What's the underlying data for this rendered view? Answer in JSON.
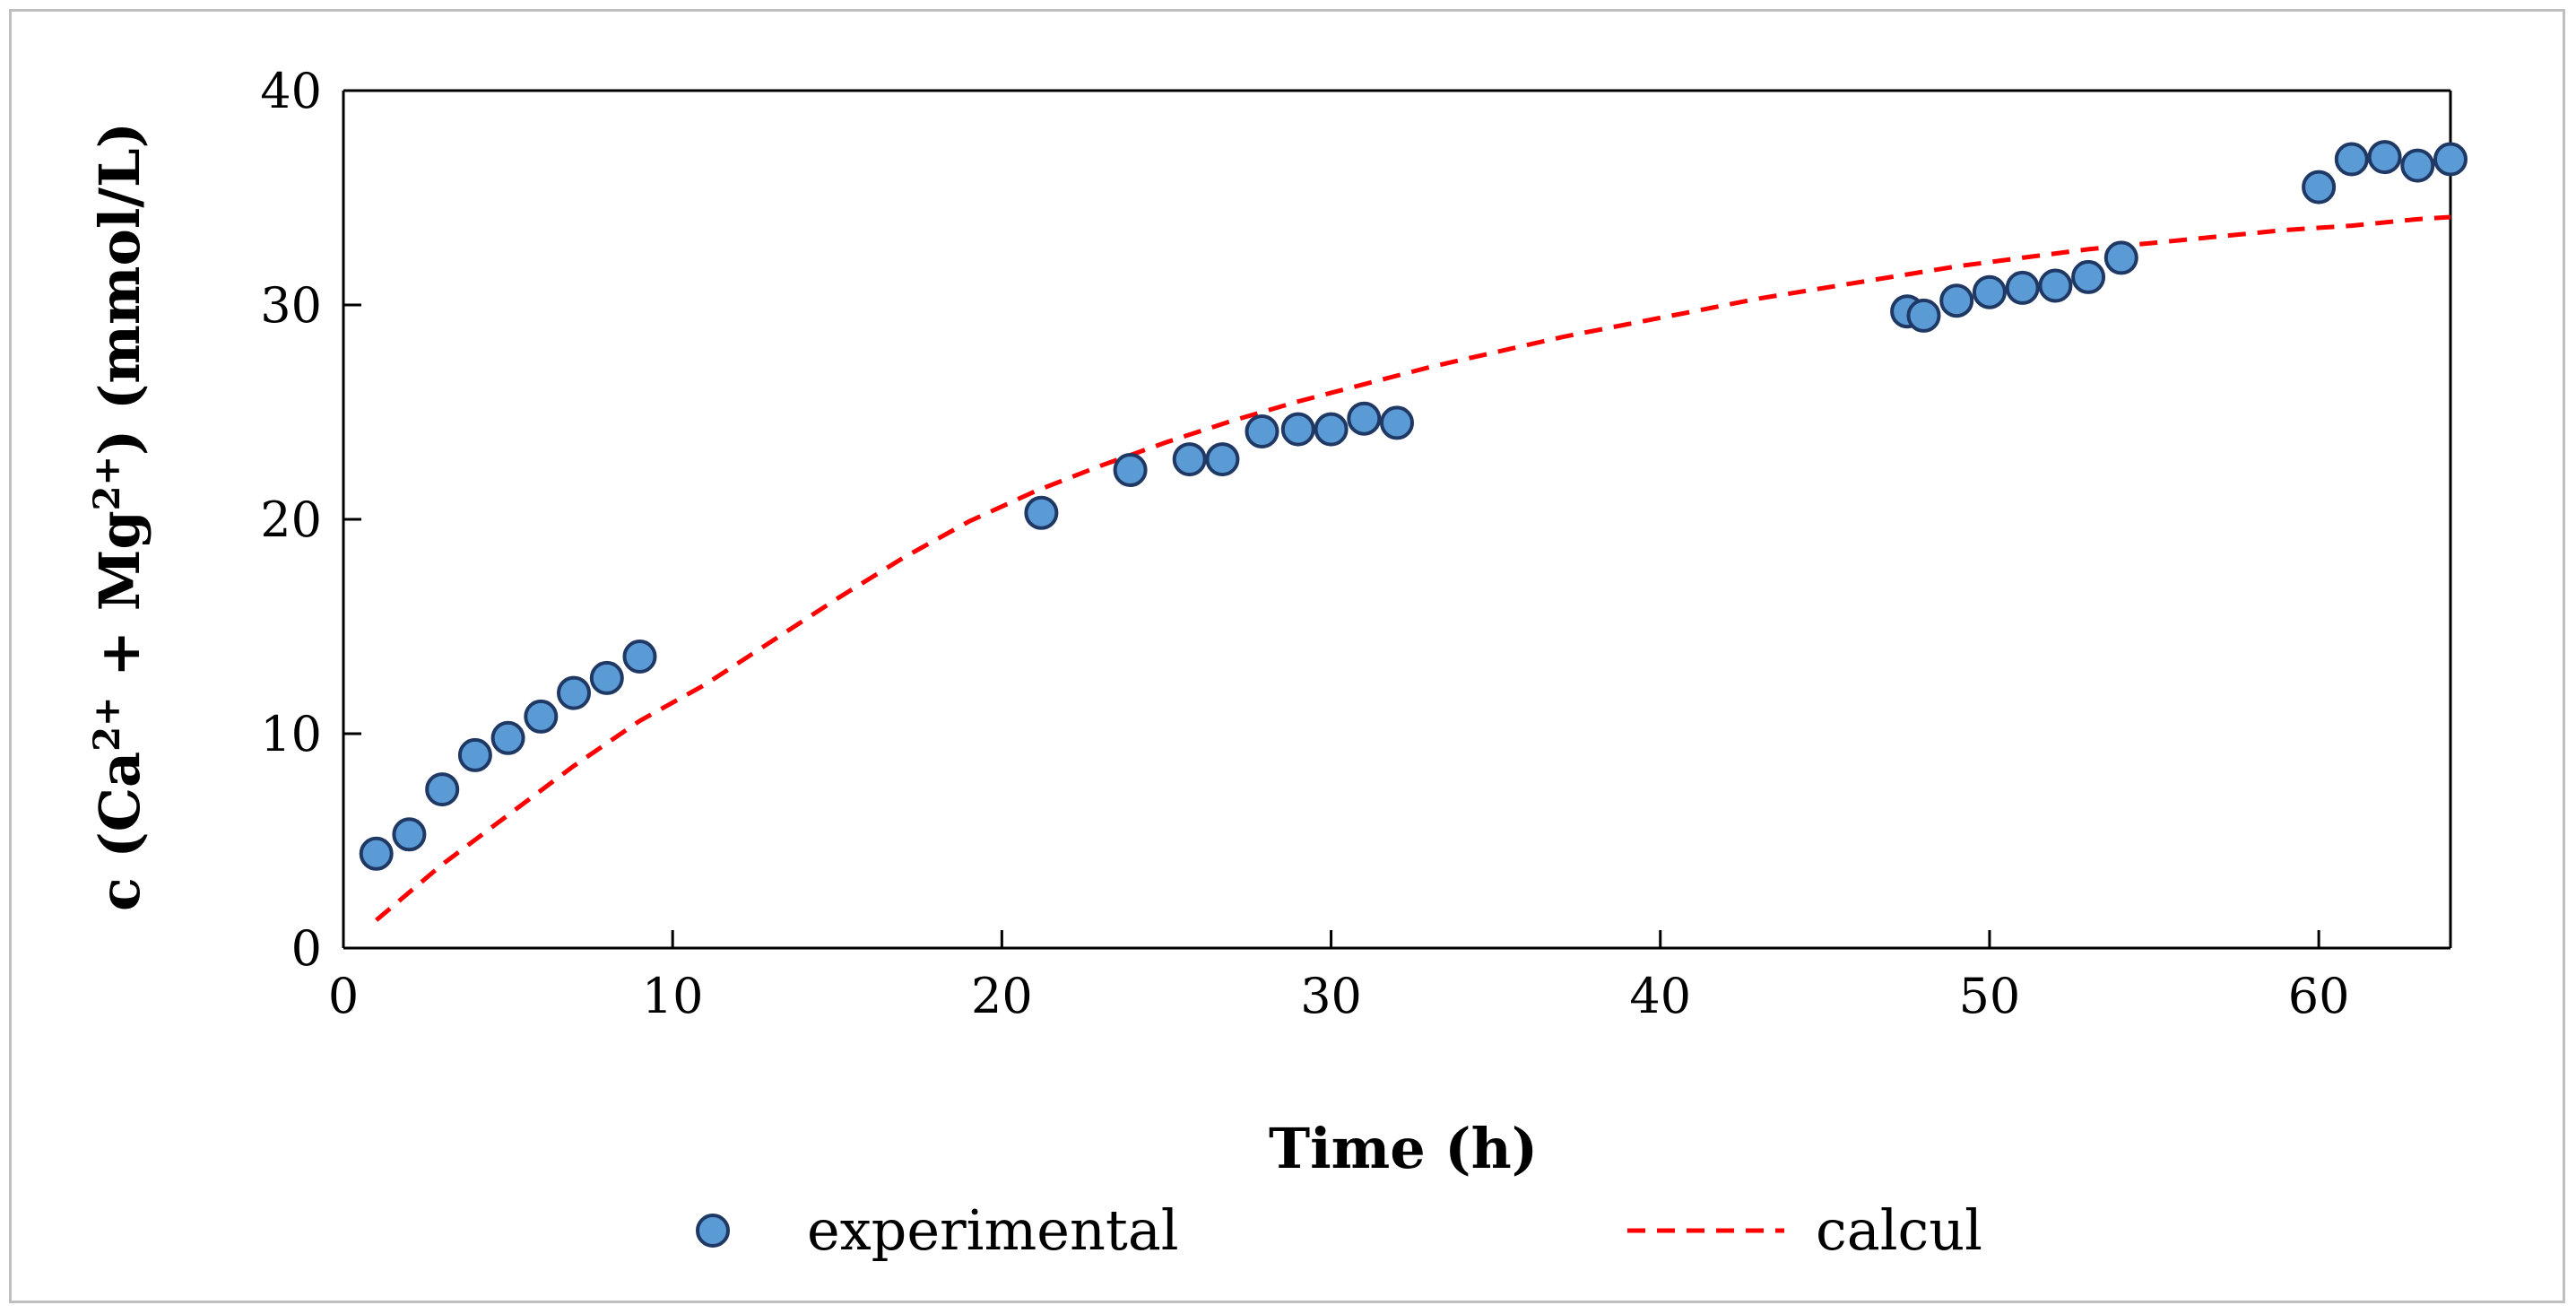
{
  "chart_data": {
    "type": "scatter",
    "title": "",
    "xlabel": "Time (h)",
    "ylabel_parts": {
      "prefix": "c (Ca",
      "sup1": "2+",
      "middle": " + Mg",
      "sup2": "2+",
      "suffix": ") (mmol/L)"
    },
    "xlim": [
      0,
      64
    ],
    "ylim": [
      0,
      40
    ],
    "xticks": [
      0,
      10,
      20,
      30,
      40,
      50,
      60
    ],
    "yticks": [
      0,
      10,
      20,
      30,
      40
    ],
    "xtick_labels": [
      "0",
      "10",
      "20",
      "30",
      "40",
      "50",
      "60"
    ],
    "ytick_labels": [
      "0",
      "10",
      "20",
      "30",
      "40"
    ],
    "grid": false,
    "legend_position": "bottom",
    "series": [
      {
        "name": "experimental",
        "kind": "scatter",
        "marker_fill": "#5b9bd5",
        "marker_edge": "#1f3864",
        "x": [
          1,
          2,
          3,
          4,
          5,
          6,
          7,
          8,
          9,
          21.2,
          23.9,
          25.7,
          26.7,
          27.9,
          29,
          30,
          31,
          32,
          47.5,
          48,
          49,
          50,
          51,
          52,
          53,
          54,
          60,
          61,
          62,
          63,
          64
        ],
        "y": [
          4.4,
          5.3,
          7.4,
          9,
          9.8,
          10.8,
          11.9,
          12.6,
          13.6,
          20.3,
          22.3,
          22.8,
          22.8,
          24.1,
          24.2,
          24.2,
          24.7,
          24.5,
          29.7,
          29.5,
          30.2,
          30.6,
          30.8,
          30.9,
          31.3,
          32.2,
          35.5,
          36.8,
          36.9,
          36.5,
          36.8
        ]
      },
      {
        "name": "calcul",
        "kind": "line",
        "style": "dashed",
        "color": "#ff0000",
        "x": [
          1,
          3,
          5,
          7,
          9,
          11,
          13,
          15,
          17,
          19,
          21,
          23,
          25,
          27,
          29,
          31,
          33,
          35,
          37,
          39,
          41,
          43,
          45,
          47,
          49,
          51,
          53,
          55,
          57,
          59,
          61,
          63,
          64
        ],
        "y": [
          1.3,
          3.9,
          6.2,
          8.5,
          10.6,
          12.3,
          14.3,
          16.3,
          18.2,
          19.9,
          21.3,
          22.5,
          23.6,
          24.6,
          25.5,
          26.3,
          27.1,
          27.8,
          28.5,
          29.1,
          29.7,
          30.3,
          30.8,
          31.3,
          31.8,
          32.2,
          32.6,
          32.9,
          33.2,
          33.5,
          33.7,
          34,
          34.1
        ]
      }
    ]
  }
}
